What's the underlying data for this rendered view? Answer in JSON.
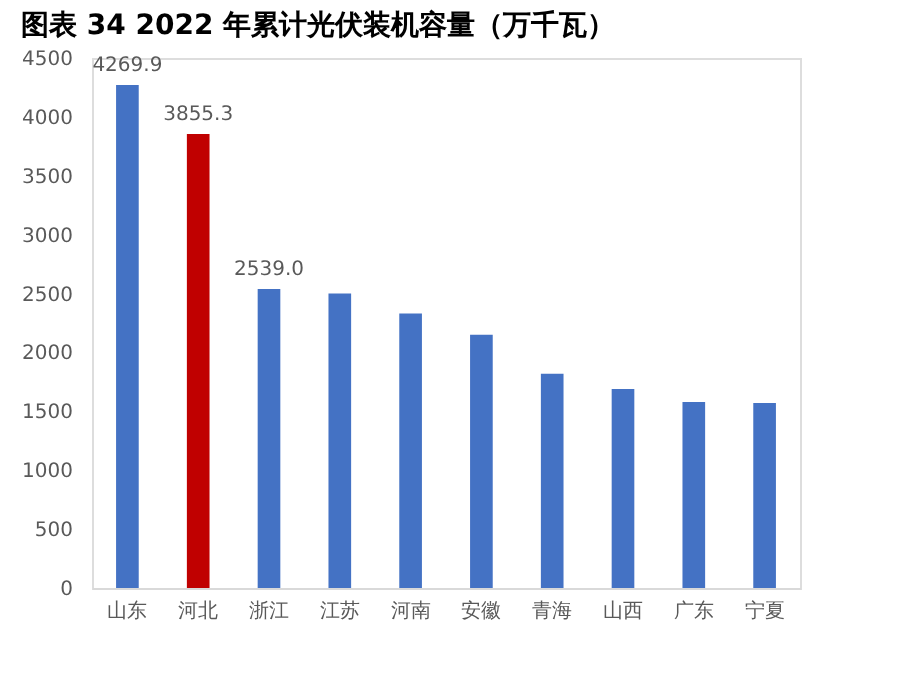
{
  "chart_data": {
    "type": "bar",
    "title": "图表 34   2022 年累计光伏装机容量（万千瓦）",
    "categories": [
      "山东",
      "河北",
      "浙江",
      "江苏",
      "河南",
      "安徽",
      "青海",
      "山西",
      "广东",
      "宁夏"
    ],
    "values": [
      4269.9,
      3855.3,
      2539.0,
      2500,
      2330,
      2150,
      1820,
      1690,
      1580,
      1570
    ],
    "colors": [
      "#4472c4",
      "#c00000",
      "#4472c4",
      "#4472c4",
      "#4472c4",
      "#4472c4",
      "#4472c4",
      "#4472c4",
      "#4472c4",
      "#4472c4"
    ],
    "value_labels": [
      "4269.9",
      "3855.3",
      "2539.0",
      null,
      null,
      null,
      null,
      null,
      null,
      null
    ],
    "ylim": [
      0,
      4500
    ],
    "yticks": [
      0,
      500,
      1000,
      1500,
      2000,
      2500,
      3000,
      3500,
      4000,
      4500
    ],
    "grid": false
  }
}
